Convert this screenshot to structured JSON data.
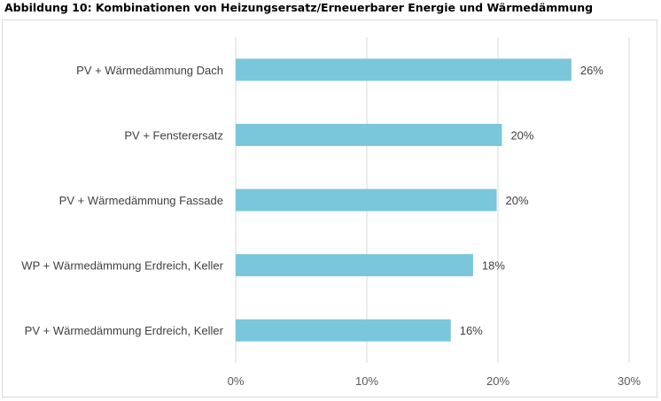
{
  "figure_title": "Abbildung 10: Kombinationen von Heizungsersatz/Erneuerbarer Energie und Wärmedämmung",
  "colors": {
    "bar": "#7ac6da",
    "grid": "#d9d9d9",
    "text": "#404040"
  },
  "chart_data": {
    "type": "bar",
    "orientation": "horizontal",
    "title": "",
    "xlabel": "",
    "ylabel": "",
    "categories": [
      "PV + Wärmedämmung Dach",
      "PV + Fensterersatz",
      "PV + Wärmedämmung Fassade",
      "WP + Wärmedämmung Erdreich, Keller",
      "PV + Wärmedämmung Erdreich, Keller"
    ],
    "values": [
      25.6,
      20.3,
      19.9,
      18.1,
      16.4
    ],
    "data_labels": [
      "26%",
      "20%",
      "20%",
      "18%",
      "16%"
    ],
    "xlim": [
      0,
      30
    ],
    "xticks": [
      0,
      10,
      20,
      30
    ],
    "xtick_labels": [
      "0%",
      "10%",
      "20%",
      "30%"
    ],
    "grid": true,
    "legend": "none"
  }
}
